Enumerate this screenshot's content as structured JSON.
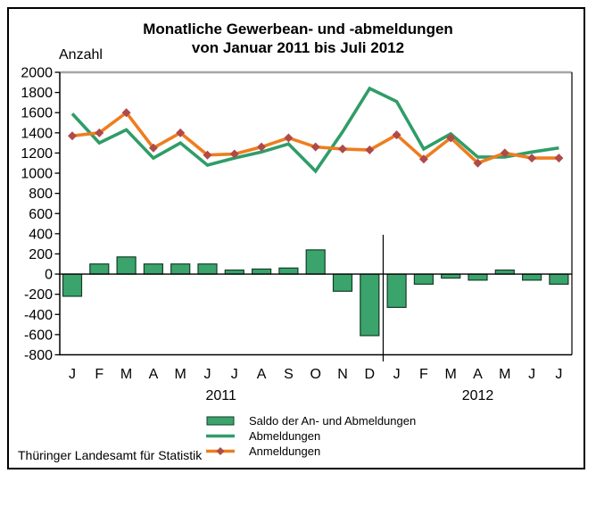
{
  "title": {
    "line1": "Monatliche Gewerbean- und -abmeldungen",
    "line2": "von Januar 2011 bis Juli 2012"
  },
  "y_axis_label": "Anzahl",
  "footer": "Thüringer Landesamt für Statistik",
  "legend": {
    "saldo": "Saldo der An- und Abmeldungen",
    "abmeldungen": "Abmeldungen",
    "anmeldungen": "Anmeldungen"
  },
  "colors": {
    "bar_fill": "#3aa46c",
    "bar_border": "#153d29",
    "green_line": "#2f9d68",
    "orange_line": "#ee7d20",
    "diamond": "#b04a48",
    "gridline": "#a6a6a6",
    "axis": "#000000"
  },
  "chart_data": {
    "type": "bar",
    "subtype": "combo-bar-line",
    "title": "Monatliche Gewerbean- und -abmeldungen von Januar 2011 bis Juli 2012",
    "ylabel": "Anzahl",
    "ylim": [
      -800,
      2000
    ],
    "y_ticks": [
      2000,
      1800,
      1600,
      1400,
      1200,
      1000,
      800,
      600,
      400,
      200,
      0,
      -200,
      -400,
      -600,
      -800
    ],
    "categories": [
      "J",
      "F",
      "M",
      "A",
      "M",
      "J",
      "J",
      "A",
      "S",
      "O",
      "N",
      "D",
      "J",
      "F",
      "M",
      "A",
      "M",
      "J",
      "J"
    ],
    "year_groups": [
      {
        "label": "2011",
        "start": 0,
        "end": 11
      },
      {
        "label": "2012",
        "start": 12,
        "end": 18
      }
    ],
    "grid": "top-line-only",
    "legend_position": "bottom",
    "series": [
      {
        "name": "Saldo der An- und Abmeldungen",
        "type": "bar",
        "values": [
          -220,
          100,
          170,
          100,
          100,
          100,
          40,
          50,
          60,
          240,
          -170,
          -610,
          -330,
          -100,
          -40,
          -60,
          40,
          -60,
          -100
        ]
      },
      {
        "name": "Abmeldungen",
        "type": "line",
        "values": [
          1590,
          1300,
          1430,
          1150,
          1300,
          1080,
          1150,
          1210,
          1290,
          1020,
          1410,
          1840,
          1710,
          1240,
          1390,
          1160,
          1160,
          1210,
          1250
        ]
      },
      {
        "name": "Anmeldungen",
        "type": "line",
        "marker": "diamond",
        "values": [
          1370,
          1400,
          1600,
          1250,
          1400,
          1180,
          1190,
          1260,
          1350,
          1260,
          1240,
          1230,
          1380,
          1140,
          1350,
          1100,
          1200,
          1150,
          1150
        ]
      }
    ]
  }
}
